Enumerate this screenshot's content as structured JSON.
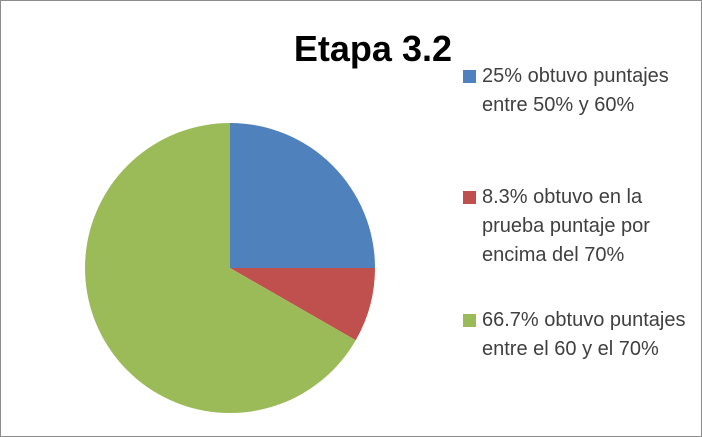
{
  "chart_data": {
    "type": "pie",
    "title": "Etapa 3.2",
    "categories": [
      "25% obtuvo puntajes entre 50% y 60%",
      "8.3%  obtuvo en la prueba puntaje por encima del 70%",
      "66.7% obtuvo puntajes entre el 60 y el 70%"
    ],
    "values": [
      25,
      8.3,
      66.7
    ],
    "colors": [
      "#4f81bd",
      "#c0504d",
      "#9bbb59"
    ],
    "legend": "right"
  }
}
